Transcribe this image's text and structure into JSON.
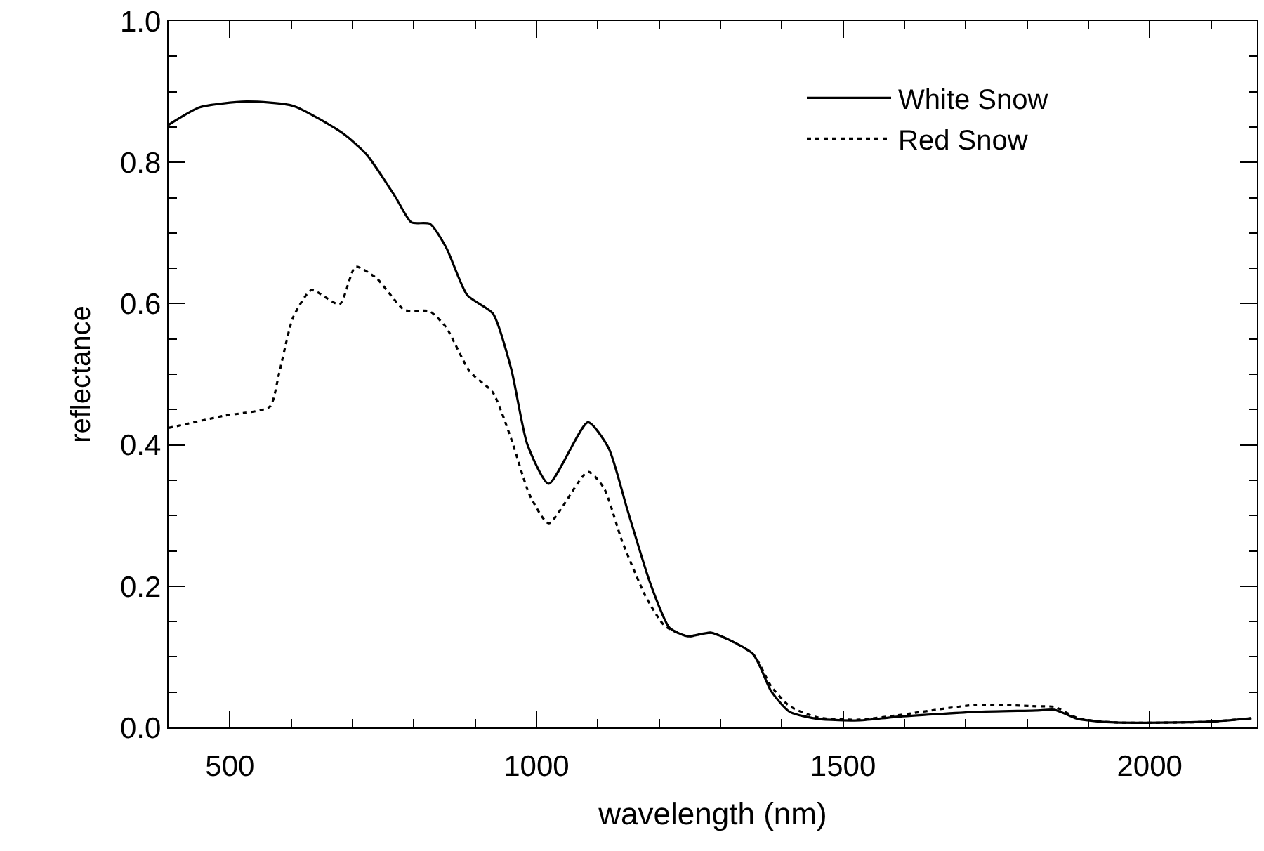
{
  "chart_data": {
    "type": "line",
    "xlabel": "wavelength (nm)",
    "ylabel": "reflectance",
    "xlim": [
      400,
      2175
    ],
    "ylim": [
      0,
      1.0
    ],
    "xticks": [
      {
        "value": 500,
        "label": "500"
      },
      {
        "value": 1000,
        "label": "1000"
      },
      {
        "value": 1500,
        "label": "1500"
      },
      {
        "value": 2000,
        "label": "2000"
      },
      {
        "value": 400,
        "label": null
      },
      {
        "value": 600,
        "label": null
      },
      {
        "value": 700,
        "label": null
      },
      {
        "value": 800,
        "label": null
      },
      {
        "value": 900,
        "label": null
      },
      {
        "value": 1100,
        "label": null
      },
      {
        "value": 1200,
        "label": null
      },
      {
        "value": 1300,
        "label": null
      },
      {
        "value": 1400,
        "label": null
      },
      {
        "value": 1600,
        "label": null
      },
      {
        "value": 1700,
        "label": null
      },
      {
        "value": 1800,
        "label": null
      },
      {
        "value": 1900,
        "label": null
      },
      {
        "value": 2100,
        "label": null
      }
    ],
    "yticks": [
      {
        "value": 0,
        "label": "0.0"
      },
      {
        "value": 0.2,
        "label": "0.2"
      },
      {
        "value": 0.4,
        "label": "0.4"
      },
      {
        "value": 0.6,
        "label": "0.6"
      },
      {
        "value": 0.8,
        "label": "0.8"
      },
      {
        "value": 1.0,
        "label": "1.0"
      },
      {
        "value": 0.05,
        "label": null
      },
      {
        "value": 0.1,
        "label": null
      },
      {
        "value": 0.15,
        "label": null
      },
      {
        "value": 0.25,
        "label": null
      },
      {
        "value": 0.3,
        "label": null
      },
      {
        "value": 0.35,
        "label": null
      },
      {
        "value": 0.45,
        "label": null
      },
      {
        "value": 0.5,
        "label": null
      },
      {
        "value": 0.55,
        "label": null
      },
      {
        "value": 0.65,
        "label": null
      },
      {
        "value": 0.7,
        "label": null
      },
      {
        "value": 0.75,
        "label": null
      },
      {
        "value": 0.85,
        "label": null
      },
      {
        "value": 0.9,
        "label": null
      },
      {
        "value": 0.95,
        "label": null
      }
    ],
    "legend": "top right",
    "marker": "none",
    "series": [
      {
        "name": "White Snow",
        "color": "#000000",
        "line_style": "solid",
        "x": [
          400,
          451,
          527,
          603,
          686,
          724,
          770,
          796,
          826,
          853,
          887,
          929,
          959,
          985,
          1020,
          1084,
          1118,
          1148,
          1186,
          1217,
          1247,
          1285,
          1353,
          1383,
          1413,
          1459,
          1527,
          1587,
          1717,
          1815,
          1845,
          1883,
          1944,
          2095,
          2166
        ],
        "values": [
          0.853,
          0.878,
          0.886,
          0.88,
          0.84,
          0.81,
          0.751,
          0.715,
          0.713,
          0.679,
          0.612,
          0.586,
          0.507,
          0.401,
          0.345,
          0.432,
          0.395,
          0.309,
          0.203,
          0.141,
          0.129,
          0.134,
          0.104,
          0.051,
          0.022,
          0.012,
          0.01,
          0.015,
          0.022,
          0.024,
          0.025,
          0.012,
          0.007,
          0.008,
          0.013
        ]
      },
      {
        "name": "Red Snow",
        "color": "#000000",
        "line_style": "dotted",
        "x": [
          400,
          489,
          565,
          580,
          603,
          633,
          679,
          705,
          739,
          785,
          826,
          853,
          891,
          929,
          959,
          989,
          1020,
          1084,
          1110,
          1140,
          1179,
          1209,
          1247,
          1285,
          1353,
          1383,
          1413,
          1459,
          1527,
          1587,
          1717,
          1815,
          1845,
          1883,
          1944,
          2095,
          2166
        ],
        "values": [
          0.424,
          0.441,
          0.454,
          0.5,
          0.58,
          0.619,
          0.599,
          0.652,
          0.636,
          0.591,
          0.589,
          0.566,
          0.504,
          0.474,
          0.408,
          0.329,
          0.289,
          0.362,
          0.339,
          0.263,
          0.184,
          0.144,
          0.129,
          0.134,
          0.104,
          0.058,
          0.03,
          0.014,
          0.011,
          0.017,
          0.032,
          0.03,
          0.029,
          0.013,
          0.007,
          0.008,
          0.013
        ]
      }
    ]
  }
}
